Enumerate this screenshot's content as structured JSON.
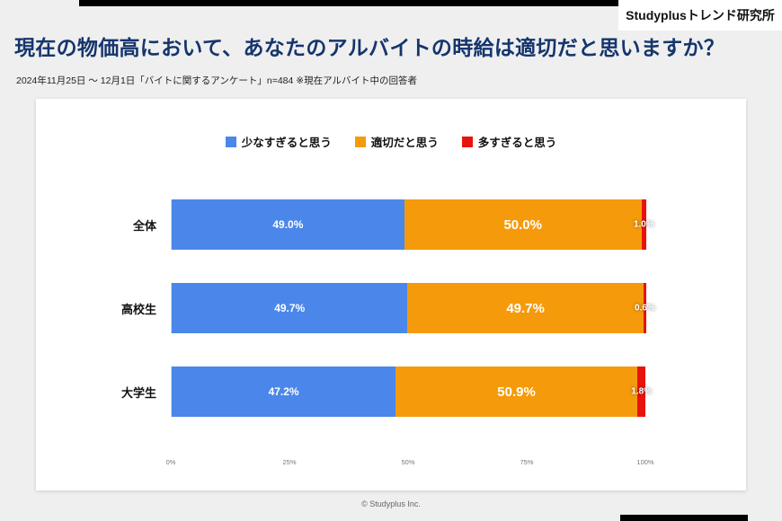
{
  "brand": "Studyplusトレンド研究所",
  "title": "現在の物価高において、あなたのアルバイトの時給は適切だと思いますか？",
  "subtitle": "2024年11月25日 ～ 12月1日「バイトに関するアンケート」n=484 ※現在アルバイト中の回答者",
  "footer": "© Studyplus Inc.",
  "colors": {
    "title_navy": "#15356d",
    "blue": "#4b87ea",
    "orange": "#f59a0b",
    "red": "#e8130c",
    "background": "#efefef",
    "card": "#ffffff",
    "accent_black": "#000000"
  },
  "chart_data": {
    "type": "bar",
    "orientation": "horizontal",
    "stacked": true,
    "title": "現在の物価高において、あなたのアルバイトの時給は適切だと思いますか？",
    "categories": [
      "全体",
      "高校生",
      "大学生"
    ],
    "series": [
      {
        "name": "少なすぎると思う",
        "color": "#4b87ea",
        "values": [
          49.0,
          49.7,
          47.2
        ]
      },
      {
        "name": "適切だと思う",
        "color": "#f59a0b",
        "values": [
          50.0,
          49.7,
          50.9
        ]
      },
      {
        "name": "多すぎると思う",
        "color": "#e8130c",
        "values": [
          1.0,
          0.6,
          1.8
        ]
      }
    ],
    "value_labels": [
      [
        "49.0%",
        "50.0%",
        "1.0%"
      ],
      [
        "49.7%",
        "49.7%",
        "0.6%"
      ],
      [
        "47.2%",
        "50.9%",
        "1.8%"
      ]
    ],
    "xlim": [
      0,
      100
    ],
    "x_ticks": [
      "0%",
      "25%",
      "50%",
      "75%",
      "100%"
    ],
    "legend_position": "top",
    "grid": false
  }
}
